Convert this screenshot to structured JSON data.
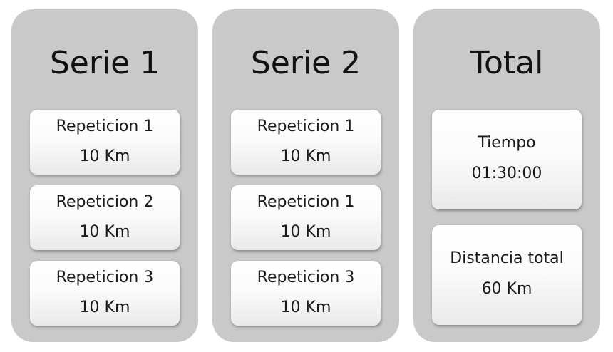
{
  "columns": [
    {
      "title": "Serie 1",
      "cards": [
        {
          "label": "Repeticion 1",
          "value": "10 Km"
        },
        {
          "label": "Repeticion 2",
          "value": "10 Km"
        },
        {
          "label": "Repeticion 3",
          "value": "10 Km"
        }
      ]
    },
    {
      "title": "Serie 2",
      "cards": [
        {
          "label": "Repeticion 1",
          "value": "10 Km"
        },
        {
          "label": "Repeticion 1",
          "value": "10 Km"
        },
        {
          "label": "Repeticion 3",
          "value": "10 Km"
        }
      ]
    },
    {
      "title": "Total",
      "cards": [
        {
          "label": "Tiempo",
          "value": "01:30:00"
        },
        {
          "label": "Distancia total",
          "value": "60 Km"
        }
      ]
    }
  ],
  "colors": {
    "panel": "#c9c9c9",
    "card_top": "#ffffff",
    "card_bottom": "#e9e9e9",
    "text": "#111111"
  }
}
